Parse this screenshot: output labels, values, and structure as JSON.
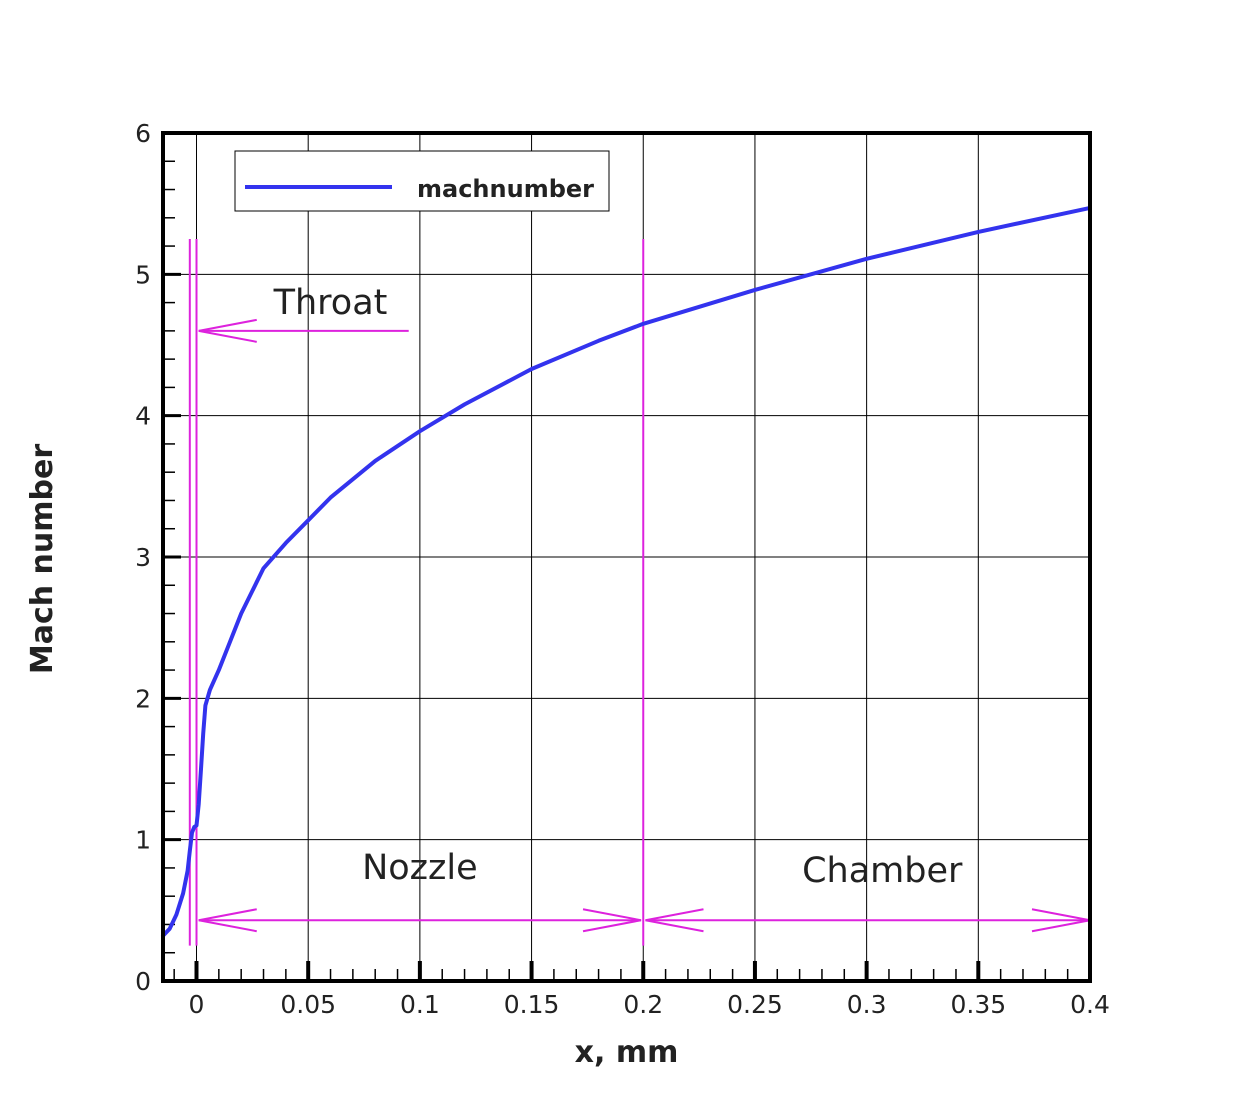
{
  "chart_data": {
    "type": "line",
    "xlabel": "x, mm",
    "ylabel": "Mach number",
    "xlim": [
      -0.015,
      0.4
    ],
    "ylim": [
      0,
      6
    ],
    "xticks": [
      0,
      0.05,
      0.1,
      0.15,
      0.2,
      0.25,
      0.3,
      0.35,
      0.4
    ],
    "xtick_labels": [
      "0",
      "0.05",
      "0.1",
      "0.15",
      "0.2",
      "0.25",
      "0.3",
      "0.35",
      "0.4"
    ],
    "yticks": [
      0,
      1,
      2,
      3,
      4,
      5,
      6
    ],
    "ytick_labels": [
      "0",
      "1",
      "2",
      "3",
      "4",
      "5",
      "6"
    ],
    "grid": true,
    "legend_position": "top-left",
    "series": [
      {
        "name": "machnumber",
        "color": "#3333ee",
        "x": [
          -0.015,
          -0.012,
          -0.009,
          -0.006,
          -0.004,
          -0.003,
          -0.002,
          -0.001,
          0,
          0.001,
          0.002,
          0.003,
          0.004,
          0.006,
          0.01,
          0.015,
          0.02,
          0.03,
          0.04,
          0.05,
          0.06,
          0.08,
          0.1,
          0.12,
          0.15,
          0.18,
          0.2,
          0.25,
          0.3,
          0.35,
          0.4
        ],
        "y": [
          0.32,
          0.37,
          0.47,
          0.62,
          0.78,
          0.92,
          1.05,
          1.09,
          1.1,
          1.25,
          1.5,
          1.75,
          1.95,
          2.06,
          2.2,
          2.4,
          2.6,
          2.92,
          3.1,
          3.26,
          3.42,
          3.68,
          3.89,
          4.08,
          4.33,
          4.53,
          4.65,
          4.89,
          5.11,
          5.3,
          5.47
        ]
      }
    ],
    "region_lines_x": [
      -0.003,
      0,
      0.2
    ],
    "region_line_color": "#dd22dd",
    "annotations": [
      {
        "text": "Throat",
        "x": 0.06,
        "y": 4.72,
        "arrow_from_x": 0.095,
        "arrow_to_x": 0.001,
        "arrow_y": 4.6
      },
      {
        "text": "Nozzle",
        "x": 0.1,
        "y": 0.72,
        "arrow_from_x": 0.001,
        "arrow_to_x": 0.199,
        "arrow_y": 0.43,
        "double": true
      },
      {
        "text": "Chamber",
        "x": 0.307,
        "y": 0.7,
        "arrow_from_x": 0.201,
        "arrow_to_x": 0.4,
        "arrow_y": 0.43,
        "double": true
      }
    ]
  }
}
